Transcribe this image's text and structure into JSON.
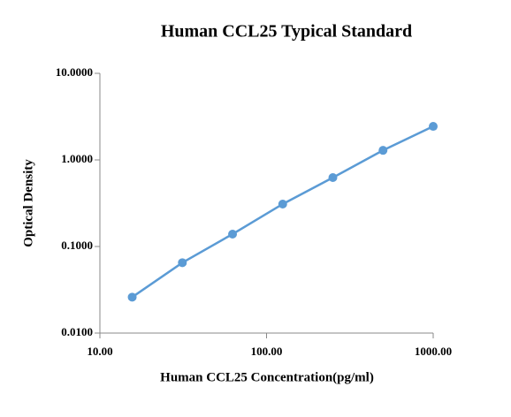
{
  "chart_data": {
    "type": "line",
    "title": "Human CCL25 Typical Standard",
    "x_label": "Human CCL25 Concentration(pg/ml)",
    "y_label": "Optical Density",
    "x": [
      15.625,
      31.25,
      62.5,
      125,
      250,
      500,
      1000
    ],
    "values": [
      0.026,
      0.065,
      0.139,
      0.309,
      0.625,
      1.29,
      2.44
    ],
    "color": "#5b9bd5",
    "xscale": "log",
    "yscale": "log",
    "xlim": [
      10,
      1000
    ],
    "ylim": [
      0.01,
      10
    ],
    "xticks": [
      {
        "value": 10,
        "label": "10.00"
      },
      {
        "value": 100,
        "label": "100.00"
      },
      {
        "value": 1000,
        "label": "1000.00"
      }
    ],
    "yticks": [
      {
        "value": 0.01,
        "label": "0.0100"
      },
      {
        "value": 0.1,
        "label": "0.1000"
      },
      {
        "value": 1,
        "label": "1.0000"
      },
      {
        "value": 10,
        "label": "10.0000"
      }
    ],
    "grid": false
  }
}
